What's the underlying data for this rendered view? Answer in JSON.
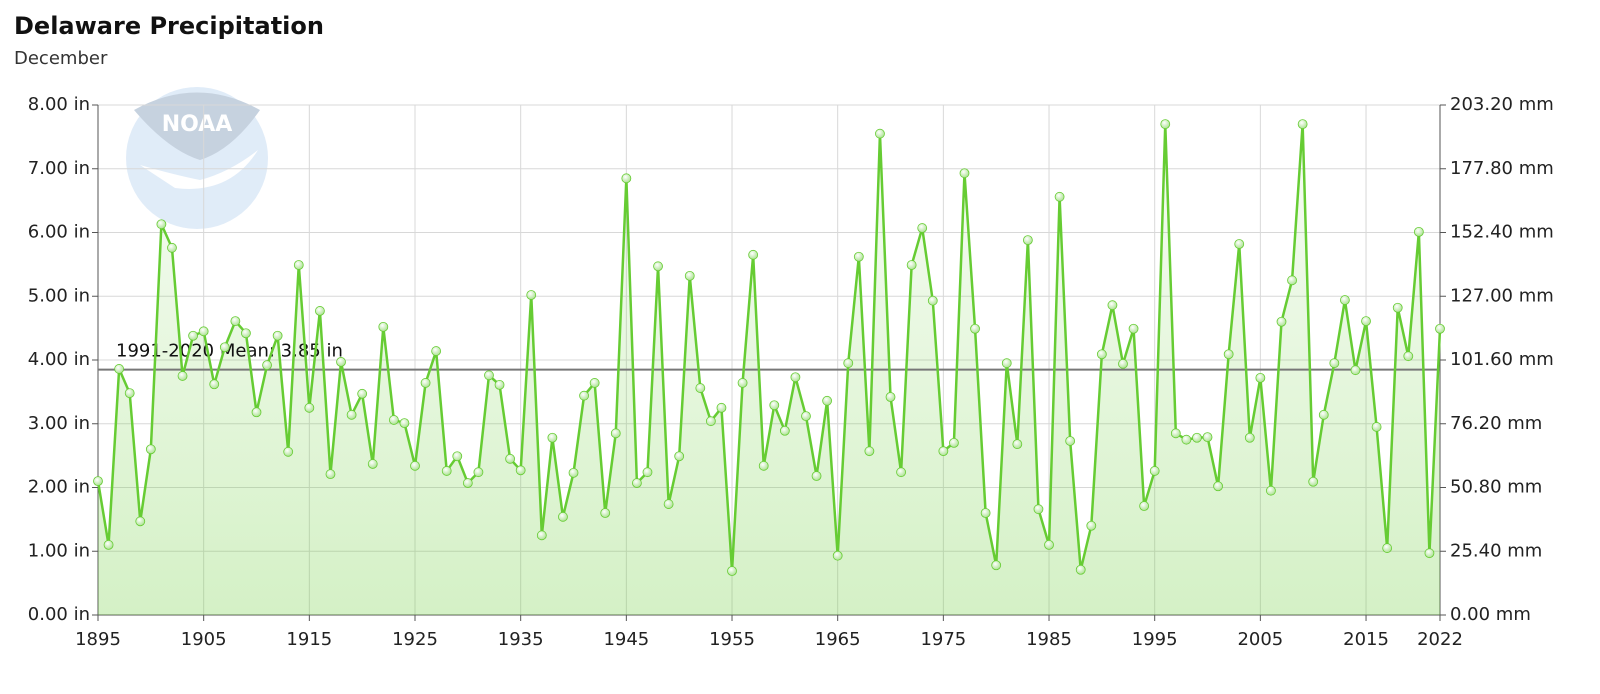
{
  "chart_data": {
    "type": "line",
    "title": "Delaware Precipitation",
    "subtitle": "December",
    "logo_text": "NOAA",
    "x": [
      1895,
      1896,
      1897,
      1898,
      1899,
      1900,
      1901,
      1902,
      1903,
      1904,
      1905,
      1906,
      1907,
      1908,
      1909,
      1910,
      1911,
      1912,
      1913,
      1914,
      1915,
      1916,
      1917,
      1918,
      1919,
      1920,
      1921,
      1922,
      1923,
      1924,
      1925,
      1926,
      1927,
      1928,
      1929,
      1930,
      1931,
      1932,
      1933,
      1934,
      1935,
      1936,
      1937,
      1938,
      1939,
      1940,
      1941,
      1942,
      1943,
      1944,
      1945,
      1946,
      1947,
      1948,
      1949,
      1950,
      1951,
      1952,
      1953,
      1954,
      1955,
      1956,
      1957,
      1958,
      1959,
      1960,
      1961,
      1962,
      1963,
      1964,
      1965,
      1966,
      1967,
      1968,
      1969,
      1970,
      1971,
      1972,
      1973,
      1974,
      1975,
      1976,
      1977,
      1978,
      1979,
      1980,
      1981,
      1982,
      1983,
      1984,
      1985,
      1986,
      1987,
      1988,
      1989,
      1990,
      1991,
      1992,
      1993,
      1994,
      1995,
      1996,
      1997,
      1998,
      1999,
      2000,
      2001,
      2002,
      2003,
      2004,
      2005,
      2006,
      2007,
      2008,
      2009,
      2010,
      2011,
      2012,
      2013,
      2014,
      2015,
      2016,
      2017,
      2018,
      2019,
      2020,
      2021,
      2022
    ],
    "series": [
      {
        "name": "Precipitation",
        "color": "#66cc33",
        "values": [
          2.1,
          1.1,
          3.86,
          3.48,
          1.47,
          2.6,
          6.13,
          5.76,
          3.75,
          4.38,
          4.45,
          3.62,
          4.2,
          4.61,
          4.42,
          3.18,
          3.92,
          4.38,
          2.56,
          5.49,
          3.25,
          4.77,
          2.21,
          3.97,
          3.14,
          3.47,
          2.37,
          4.52,
          3.06,
          3.01,
          2.34,
          3.64,
          4.14,
          2.26,
          2.49,
          2.07,
          2.24,
          3.76,
          3.61,
          2.45,
          2.27,
          5.02,
          1.25,
          2.78,
          1.54,
          2.23,
          3.44,
          3.64,
          1.6,
          2.85,
          6.85,
          2.07,
          2.24,
          5.47,
          1.74,
          2.49,
          5.32,
          3.56,
          3.04,
          3.25,
          0.69,
          3.64,
          5.65,
          2.34,
          3.29,
          2.89,
          3.73,
          3.12,
          2.18,
          3.36,
          0.93,
          3.95,
          5.62,
          2.57,
          7.55,
          3.42,
          2.24,
          5.49,
          6.07,
          4.93,
          2.57,
          2.7,
          6.93,
          4.49,
          1.6,
          0.78,
          3.95,
          2.68,
          5.88,
          1.66,
          1.1,
          6.56,
          2.73,
          0.71,
          1.4,
          4.09,
          4.86,
          3.94,
          4.49,
          1.71,
          2.26,
          7.7,
          2.85,
          2.75,
          2.78,
          2.79,
          2.02,
          4.09,
          5.82,
          2.78,
          3.72,
          1.95,
          4.6,
          5.25,
          7.7,
          2.09,
          3.14,
          3.95,
          4.94,
          3.84,
          4.61,
          2.95,
          1.05,
          4.82,
          4.06,
          6.01,
          0.97,
          4.49
        ]
      }
    ],
    "mean": {
      "value": 3.85,
      "label": "1991-2020 Mean: 3.85 in"
    },
    "xlim": [
      1895,
      2022
    ],
    "xticks": [
      1895,
      1905,
      1915,
      1925,
      1935,
      1945,
      1955,
      1965,
      1975,
      1985,
      1995,
      2005,
      2015,
      2022
    ],
    "ylim": [
      0,
      8
    ],
    "yticks": [
      {
        "value": 0,
        "label": "0.00 in"
      },
      {
        "value": 1,
        "label": "1.00 in"
      },
      {
        "value": 2,
        "label": "2.00 in"
      },
      {
        "value": 3,
        "label": "3.00 in"
      },
      {
        "value": 4,
        "label": "4.00 in"
      },
      {
        "value": 5,
        "label": "5.00 in"
      },
      {
        "value": 6,
        "label": "6.00 in"
      },
      {
        "value": 7,
        "label": "7.00 in"
      },
      {
        "value": 8,
        "label": "8.00 in"
      }
    ],
    "y2lim": [
      0,
      203.2
    ],
    "y2ticks": [
      {
        "value": 0,
        "label": "0.00 mm"
      },
      {
        "value": 25.4,
        "label": "25.40 mm"
      },
      {
        "value": 50.8,
        "label": "50.80 mm"
      },
      {
        "value": 76.2,
        "label": "76.20 mm"
      },
      {
        "value": 101.6,
        "label": "101.60 mm"
      },
      {
        "value": 127,
        "label": "127.00 mm"
      },
      {
        "value": 152.4,
        "label": "152.40 mm"
      },
      {
        "value": 177.8,
        "label": "177.80 mm"
      },
      {
        "value": 203.2,
        "label": "203.20 mm"
      }
    ],
    "grid": true
  }
}
